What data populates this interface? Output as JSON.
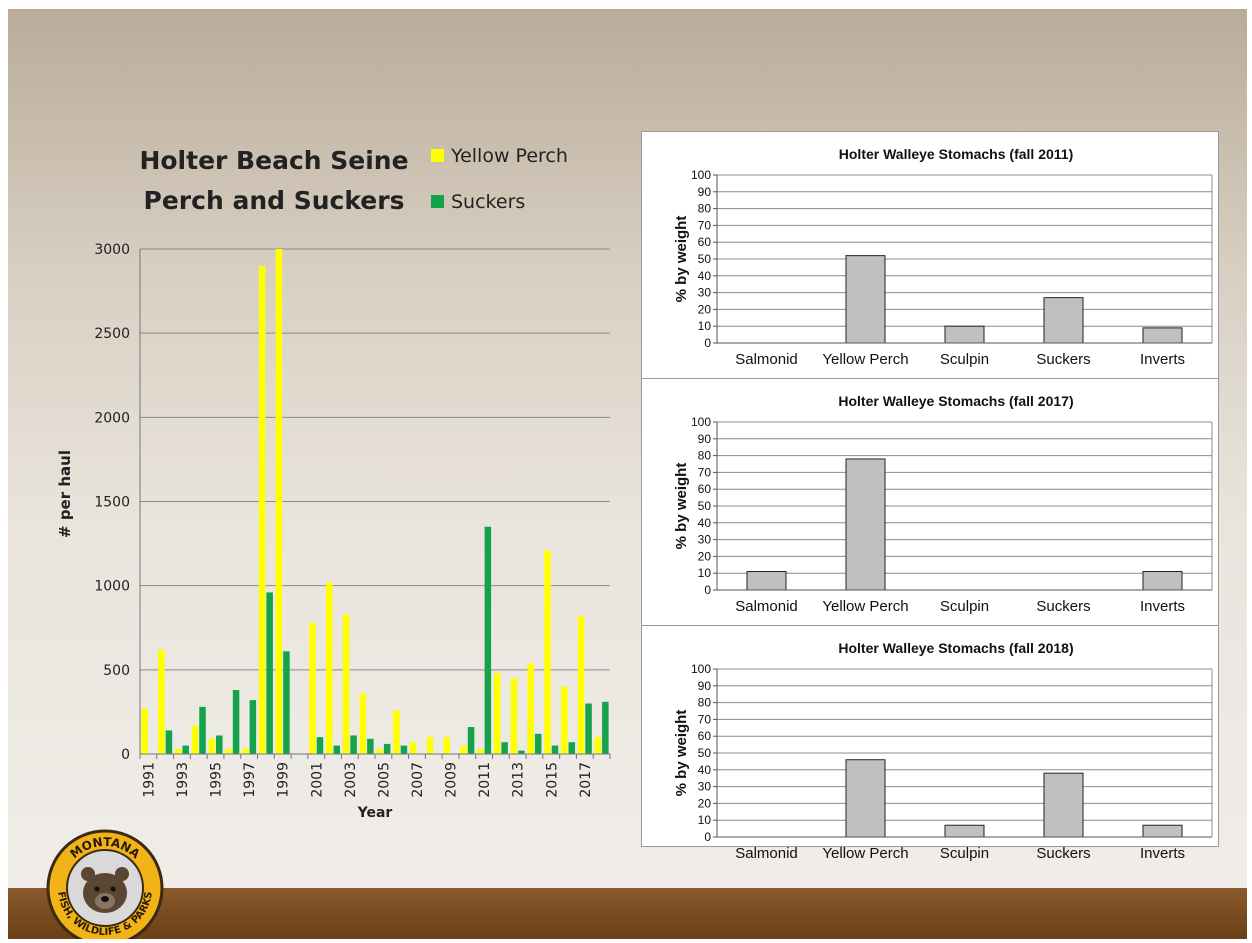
{
  "colors": {
    "yellow_perch": "#ffff00",
    "suckers": "#14a24a",
    "stomach_bar": "#c0c0c0"
  },
  "logo": {
    "alt": "Montana Fish, Wildlife & Parks",
    "top_text": "MONTANA",
    "bottom_text": "FISH, WILDLIFE & PARKS"
  },
  "chart_data": [
    {
      "type": "bar",
      "title": "Holter Beach Seine\nPerch and Suckers",
      "title_lines": [
        "Holter Beach Seine",
        "Perch and Suckers"
      ],
      "xlabel": "Year",
      "ylabel": "# per haul",
      "ylim": [
        0,
        3000
      ],
      "yticks": [
        0,
        500,
        1000,
        1500,
        2000,
        2500,
        3000
      ],
      "legend": "top-right",
      "grid": true,
      "x": [
        1991,
        1992,
        1993,
        1994,
        1995,
        1996,
        1997,
        1998,
        1999,
        2000,
        2001,
        2002,
        2003,
        2004,
        2005,
        2006,
        2007,
        2008,
        2009,
        2010,
        2011,
        2012,
        2013,
        2014,
        2015,
        2016,
        2017,
        2018
      ],
      "xtick_labels": [
        "1991",
        "1993",
        "1995",
        "1997",
        "1999",
        "2001",
        "2003",
        "2005",
        "2007",
        "2009",
        "2011",
        "2013",
        "2015",
        "2017"
      ],
      "series": [
        {
          "name": "Yellow Perch",
          "values": [
            270,
            620,
            30,
            170,
            90,
            30,
            30,
            2900,
            3000,
            null,
            780,
            1020,
            830,
            360,
            30,
            260,
            70,
            100,
            100,
            50,
            30,
            480,
            450,
            540,
            1210,
            400,
            820,
            100
          ]
        },
        {
          "name": "Suckers",
          "values": [
            0,
            140,
            50,
            280,
            110,
            380,
            320,
            960,
            610,
            null,
            100,
            50,
            110,
            90,
            60,
            50,
            0,
            0,
            0,
            160,
            1350,
            70,
            20,
            120,
            50,
            70,
            300,
            310
          ]
        }
      ]
    },
    {
      "type": "bar",
      "title": "Holter Walleye Stomachs (fall 2011)",
      "ylabel": "% by weight",
      "ylim": [
        0,
        100
      ],
      "yticks": [
        0,
        10,
        20,
        30,
        40,
        50,
        60,
        70,
        80,
        90,
        100
      ],
      "categories": [
        "Salmonid",
        "Yellow Perch",
        "Sculpin",
        "Suckers",
        "Inverts"
      ],
      "values": [
        0,
        52,
        10,
        27,
        9
      ]
    },
    {
      "type": "bar",
      "title": "Holter Walleye Stomachs (fall 2017)",
      "ylabel": "% by weight",
      "ylim": [
        0,
        100
      ],
      "yticks": [
        0,
        10,
        20,
        30,
        40,
        50,
        60,
        70,
        80,
        90,
        100
      ],
      "categories": [
        "Salmonid",
        "Yellow Perch",
        "Sculpin",
        "Suckers",
        "Inverts"
      ],
      "values": [
        11,
        78,
        0,
        0,
        11
      ]
    },
    {
      "type": "bar",
      "title": "Holter Walleye Stomachs (fall 2018)",
      "ylabel": "% by weight",
      "ylim": [
        0,
        100
      ],
      "yticks": [
        0,
        10,
        20,
        30,
        40,
        50,
        60,
        70,
        80,
        90,
        100
      ],
      "categories": [
        "Salmonid",
        "Yellow Perch",
        "Sculpin",
        "Suckers",
        "Inverts"
      ],
      "values": [
        0,
        46,
        7,
        38,
        7
      ]
    }
  ]
}
